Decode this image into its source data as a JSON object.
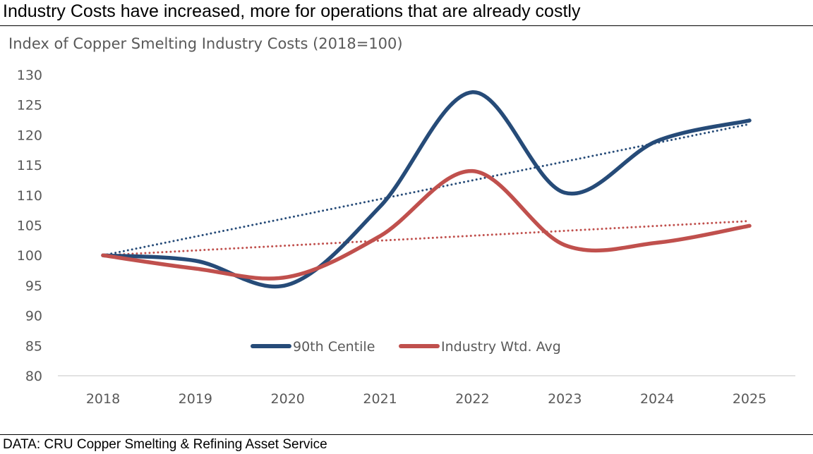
{
  "headline": "Industry Costs have increased, more for operations that are already costly",
  "source": "DATA: CRU Copper Smelting & Refining Asset Service",
  "chart_data": {
    "type": "line",
    "title": "Index of Copper Smelting Industry Costs (2018=100)",
    "xlabel": "",
    "ylabel": "",
    "categories": [
      "2018",
      "2019",
      "2020",
      "2021",
      "2022",
      "2023",
      "2024",
      "2025"
    ],
    "ylim": [
      80,
      130
    ],
    "yticks": [
      80,
      85,
      90,
      95,
      100,
      105,
      110,
      115,
      120,
      125,
      130
    ],
    "grid": false,
    "smoothed": true,
    "legend_position": "bottom-inside",
    "series": [
      {
        "name": "90th Centile",
        "color": "#264B78",
        "values": [
          100,
          99.1,
          95.1,
          108.1,
          127.1,
          110.4,
          119,
          122.4
        ],
        "trendline": {
          "type": "linear",
          "style": "dotted",
          "start": 100,
          "end": 121.8
        }
      },
      {
        "name": "Industry Wtd. Avg",
        "color": "#C0504D",
        "values": [
          100,
          97.8,
          96.4,
          103.2,
          114,
          101.7,
          102.1,
          104.9
        ],
        "trendline": {
          "type": "linear",
          "style": "dotted",
          "start": 100,
          "end": 105.7
        }
      }
    ]
  }
}
